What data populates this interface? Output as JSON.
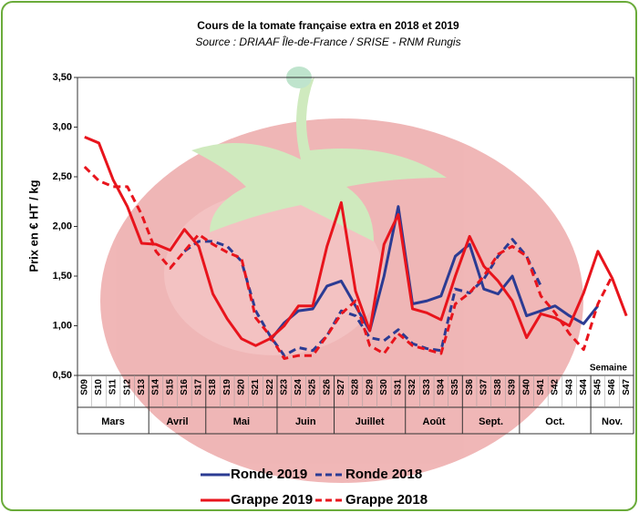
{
  "chart_data": {
    "type": "line",
    "title": "Cours de la tomate française extra en 2018 et 2019",
    "subtitle": "Source : DRIAAF Île-de-France / SRISE - RNM Rungis",
    "y_label": "Prix en € HT / kg",
    "x_annotation": "Semaine",
    "categories": [
      "S09",
      "S10",
      "S11",
      "S12",
      "S13",
      "S14",
      "S15",
      "S16",
      "S17",
      "S18",
      "S19",
      "S20",
      "S21",
      "S22",
      "S23",
      "S24",
      "S25",
      "S26",
      "S27",
      "S28",
      "S29",
      "S30",
      "S31",
      "S32",
      "S33",
      "S34",
      "S35",
      "S36",
      "S37",
      "S38",
      "S39",
      "S40",
      "S41",
      "S42",
      "S43",
      "S44",
      "S45",
      "S46",
      "S47"
    ],
    "month_groups": [
      {
        "label": "Mars",
        "first": "S09",
        "last": "S13"
      },
      {
        "label": "Avril",
        "first": "S14",
        "last": "S17"
      },
      {
        "label": "Mai",
        "first": "S18",
        "last": "S22"
      },
      {
        "label": "Juin",
        "first": "S23",
        "last": "S26"
      },
      {
        "label": "Juillet",
        "first": "S27",
        "last": "S31"
      },
      {
        "label": "Août",
        "first": "S32",
        "last": "S35"
      },
      {
        "label": "Sept.",
        "first": "S36",
        "last": "S39"
      },
      {
        "label": "Oct.",
        "first": "S40",
        "last": "S44"
      },
      {
        "label": "Nov.",
        "first": "S45",
        "last": "S47"
      }
    ],
    "ylim": [
      0.5,
      3.5
    ],
    "yticks": [
      {
        "value": 0.5,
        "label": "0,50"
      },
      {
        "value": 1,
        "label": "1,00"
      },
      {
        "value": 1.5,
        "label": "1,50"
      },
      {
        "value": 2,
        "label": "2,00"
      },
      {
        "value": 2.5,
        "label": "2,50"
      },
      {
        "value": 3,
        "label": "3,00"
      },
      {
        "value": 3.5,
        "label": "3,50"
      }
    ],
    "grid": false,
    "series": [
      {
        "name": "Ronde 2019",
        "color": "#2b3b93",
        "dashed": false,
        "values": [
          null,
          null,
          null,
          null,
          null,
          null,
          null,
          null,
          null,
          null,
          null,
          null,
          null,
          0.85,
          1.03,
          1.15,
          1.17,
          1.4,
          1.45,
          1.2,
          0.95,
          1.5,
          2.2,
          1.22,
          1.25,
          1.3,
          1.7,
          1.82,
          1.37,
          1.32,
          1.5,
          1.1,
          1.15,
          1.2,
          1.1,
          1.02,
          1.2,
          null,
          null
        ]
      },
      {
        "name": "Ronde 2018",
        "color": "#2b3b93",
        "dashed": true,
        "values": [
          null,
          null,
          null,
          null,
          null,
          null,
          null,
          1.75,
          1.85,
          1.85,
          1.8,
          1.65,
          1.15,
          0.9,
          0.7,
          0.78,
          0.75,
          0.9,
          1.15,
          1.1,
          0.88,
          0.85,
          0.96,
          0.82,
          0.77,
          0.75,
          1.37,
          1.33,
          1.47,
          1.7,
          1.87,
          1.7,
          1.4,
          null,
          null,
          null,
          null,
          null,
          null
        ]
      },
      {
        "name": "Grappe 2019",
        "color": "#e8141c",
        "dashed": false,
        "values": [
          2.9,
          2.84,
          2.47,
          2.2,
          1.83,
          1.82,
          1.76,
          1.97,
          1.8,
          1.32,
          1.07,
          0.87,
          0.8,
          0.87,
          1.0,
          1.2,
          1.2,
          1.8,
          2.24,
          1.35,
          0.95,
          1.82,
          2.12,
          1.17,
          1.13,
          1.06,
          1.5,
          1.9,
          1.6,
          1.45,
          1.25,
          0.88,
          1.12,
          1.08,
          1.0,
          1.33,
          1.75,
          1.48,
          1.1
        ]
      },
      {
        "name": "Grappe 2018",
        "color": "#e8141c",
        "dashed": true,
        "values": [
          2.6,
          2.46,
          2.4,
          2.4,
          2.12,
          1.75,
          1.58,
          1.75,
          1.92,
          1.82,
          1.74,
          1.68,
          1.08,
          0.9,
          0.67,
          0.7,
          0.7,
          0.9,
          1.12,
          1.25,
          0.8,
          0.72,
          0.92,
          0.8,
          0.76,
          0.72,
          1.22,
          1.33,
          1.5,
          1.72,
          1.8,
          1.7,
          1.3,
          1.13,
          0.92,
          0.76,
          1.22,
          1.5,
          null
        ]
      }
    ]
  }
}
